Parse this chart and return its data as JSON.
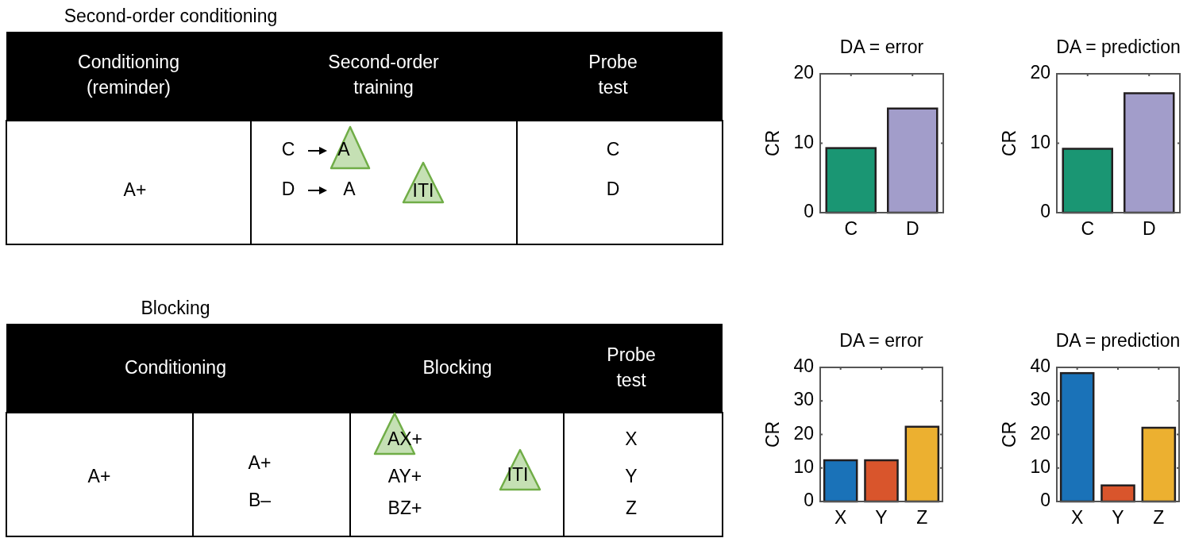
{
  "chart_data": [
    {
      "type": "other",
      "title": "Second-order conditioning",
      "annotations": [
        "Conditioning\n(reminder)",
        "Second-order\ntraining",
        "Probe\ntest",
        "A+",
        "C",
        "A",
        "D",
        "A",
        "ITI",
        "C",
        "D"
      ]
    },
    {
      "type": "bar",
      "title": "DA = error",
      "categories": [
        "C",
        "D"
      ],
      "values": [
        9.3,
        15
      ],
      "colors": [
        "#1a9673",
        "#a29dca"
      ],
      "ylabel": "CR",
      "ylim": [
        0,
        20
      ],
      "yticks": [
        0,
        10,
        20
      ]
    },
    {
      "type": "bar",
      "title": "DA = prediction",
      "categories": [
        "C",
        "D"
      ],
      "values": [
        9.2,
        17.2
      ],
      "colors": [
        "#1a9673",
        "#a29dca"
      ],
      "ylabel": "CR",
      "ylim": [
        0,
        20
      ],
      "yticks": [
        0,
        10,
        20
      ]
    },
    {
      "type": "other",
      "title": "Blocking",
      "annotations": [
        "Conditioning",
        "Blocking",
        "Probe\ntest",
        "A+",
        "A+",
        "B–",
        "AX+",
        "AY+",
        "BZ+",
        "ITI",
        "X",
        "Y",
        "Z"
      ]
    },
    {
      "type": "bar",
      "title": "DA = error",
      "categories": [
        "X",
        "Y",
        "Z"
      ],
      "values": [
        12.3,
        12.3,
        22.3
      ],
      "colors": [
        "#1a72b8",
        "#d9552c",
        "#ecb030"
      ],
      "ylabel": "CR",
      "ylim": [
        0,
        40
      ],
      "yticks": [
        0,
        10,
        20,
        30,
        40
      ]
    },
    {
      "type": "bar",
      "title": "DA = prediction",
      "categories": [
        "X",
        "Y",
        "Z"
      ],
      "values": [
        38.3,
        4.8,
        22
      ],
      "colors": [
        "#1a72b8",
        "#d9552c",
        "#ecb030"
      ],
      "ylabel": "CR",
      "ylim": [
        0,
        40
      ],
      "yticks": [
        0,
        10,
        20,
        30,
        40
      ]
    }
  ]
}
